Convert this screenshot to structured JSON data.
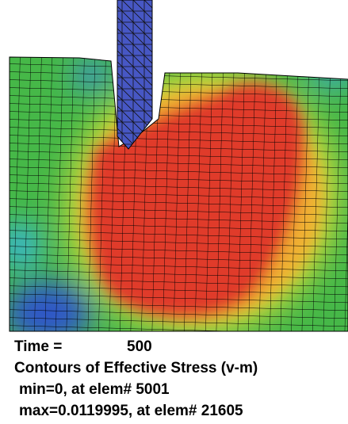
{
  "time_label": "Time =",
  "time_value": 500,
  "title": "Contours of Effective Stress (v-m)",
  "min_line": "min=0, at elem# 5001",
  "max_line": "max=0.0119995, at elem# 21605"
}
